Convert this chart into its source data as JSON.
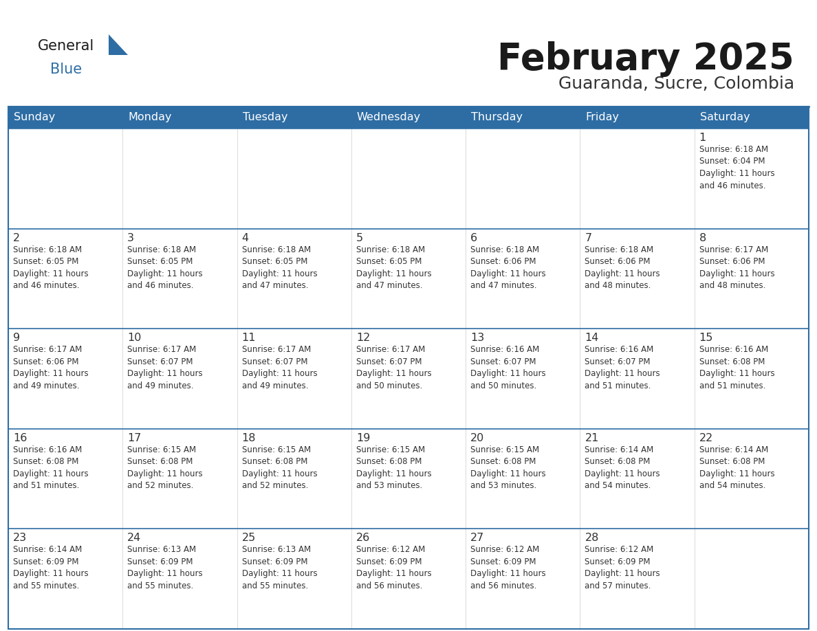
{
  "title": "February 2025",
  "subtitle": "Guaranda, Sucre, Colombia",
  "header_bg": "#2E6DA4",
  "header_text_color": "#FFFFFF",
  "cell_bg": "#FFFFFF",
  "row_separator_color": "#2E6DA4",
  "col_separator_color": "#CCCCCC",
  "day_headers": [
    "Sunday",
    "Monday",
    "Tuesday",
    "Wednesday",
    "Thursday",
    "Friday",
    "Saturday"
  ],
  "title_color": "#1a1a1a",
  "subtitle_color": "#333333",
  "day_num_color": "#333333",
  "info_color": "#333333",
  "logo_general_color": "#1a1a1a",
  "logo_blue_color": "#2E6DA4",
  "logo_triangle_color": "#2E6DA4",
  "calendar": [
    [
      {
        "day": "",
        "info": ""
      },
      {
        "day": "",
        "info": ""
      },
      {
        "day": "",
        "info": ""
      },
      {
        "day": "",
        "info": ""
      },
      {
        "day": "",
        "info": ""
      },
      {
        "day": "",
        "info": ""
      },
      {
        "day": "1",
        "info": "Sunrise: 6:18 AM\nSunset: 6:04 PM\nDaylight: 11 hours\nand 46 minutes."
      }
    ],
    [
      {
        "day": "2",
        "info": "Sunrise: 6:18 AM\nSunset: 6:05 PM\nDaylight: 11 hours\nand 46 minutes."
      },
      {
        "day": "3",
        "info": "Sunrise: 6:18 AM\nSunset: 6:05 PM\nDaylight: 11 hours\nand 46 minutes."
      },
      {
        "day": "4",
        "info": "Sunrise: 6:18 AM\nSunset: 6:05 PM\nDaylight: 11 hours\nand 47 minutes."
      },
      {
        "day": "5",
        "info": "Sunrise: 6:18 AM\nSunset: 6:05 PM\nDaylight: 11 hours\nand 47 minutes."
      },
      {
        "day": "6",
        "info": "Sunrise: 6:18 AM\nSunset: 6:06 PM\nDaylight: 11 hours\nand 47 minutes."
      },
      {
        "day": "7",
        "info": "Sunrise: 6:18 AM\nSunset: 6:06 PM\nDaylight: 11 hours\nand 48 minutes."
      },
      {
        "day": "8",
        "info": "Sunrise: 6:17 AM\nSunset: 6:06 PM\nDaylight: 11 hours\nand 48 minutes."
      }
    ],
    [
      {
        "day": "9",
        "info": "Sunrise: 6:17 AM\nSunset: 6:06 PM\nDaylight: 11 hours\nand 49 minutes."
      },
      {
        "day": "10",
        "info": "Sunrise: 6:17 AM\nSunset: 6:07 PM\nDaylight: 11 hours\nand 49 minutes."
      },
      {
        "day": "11",
        "info": "Sunrise: 6:17 AM\nSunset: 6:07 PM\nDaylight: 11 hours\nand 49 minutes."
      },
      {
        "day": "12",
        "info": "Sunrise: 6:17 AM\nSunset: 6:07 PM\nDaylight: 11 hours\nand 50 minutes."
      },
      {
        "day": "13",
        "info": "Sunrise: 6:16 AM\nSunset: 6:07 PM\nDaylight: 11 hours\nand 50 minutes."
      },
      {
        "day": "14",
        "info": "Sunrise: 6:16 AM\nSunset: 6:07 PM\nDaylight: 11 hours\nand 51 minutes."
      },
      {
        "day": "15",
        "info": "Sunrise: 6:16 AM\nSunset: 6:08 PM\nDaylight: 11 hours\nand 51 minutes."
      }
    ],
    [
      {
        "day": "16",
        "info": "Sunrise: 6:16 AM\nSunset: 6:08 PM\nDaylight: 11 hours\nand 51 minutes."
      },
      {
        "day": "17",
        "info": "Sunrise: 6:15 AM\nSunset: 6:08 PM\nDaylight: 11 hours\nand 52 minutes."
      },
      {
        "day": "18",
        "info": "Sunrise: 6:15 AM\nSunset: 6:08 PM\nDaylight: 11 hours\nand 52 minutes."
      },
      {
        "day": "19",
        "info": "Sunrise: 6:15 AM\nSunset: 6:08 PM\nDaylight: 11 hours\nand 53 minutes."
      },
      {
        "day": "20",
        "info": "Sunrise: 6:15 AM\nSunset: 6:08 PM\nDaylight: 11 hours\nand 53 minutes."
      },
      {
        "day": "21",
        "info": "Sunrise: 6:14 AM\nSunset: 6:08 PM\nDaylight: 11 hours\nand 54 minutes."
      },
      {
        "day": "22",
        "info": "Sunrise: 6:14 AM\nSunset: 6:08 PM\nDaylight: 11 hours\nand 54 minutes."
      }
    ],
    [
      {
        "day": "23",
        "info": "Sunrise: 6:14 AM\nSunset: 6:09 PM\nDaylight: 11 hours\nand 55 minutes."
      },
      {
        "day": "24",
        "info": "Sunrise: 6:13 AM\nSunset: 6:09 PM\nDaylight: 11 hours\nand 55 minutes."
      },
      {
        "day": "25",
        "info": "Sunrise: 6:13 AM\nSunset: 6:09 PM\nDaylight: 11 hours\nand 55 minutes."
      },
      {
        "day": "26",
        "info": "Sunrise: 6:12 AM\nSunset: 6:09 PM\nDaylight: 11 hours\nand 56 minutes."
      },
      {
        "day": "27",
        "info": "Sunrise: 6:12 AM\nSunset: 6:09 PM\nDaylight: 11 hours\nand 56 minutes."
      },
      {
        "day": "28",
        "info": "Sunrise: 6:12 AM\nSunset: 6:09 PM\nDaylight: 11 hours\nand 57 minutes."
      },
      {
        "day": "",
        "info": ""
      }
    ]
  ]
}
